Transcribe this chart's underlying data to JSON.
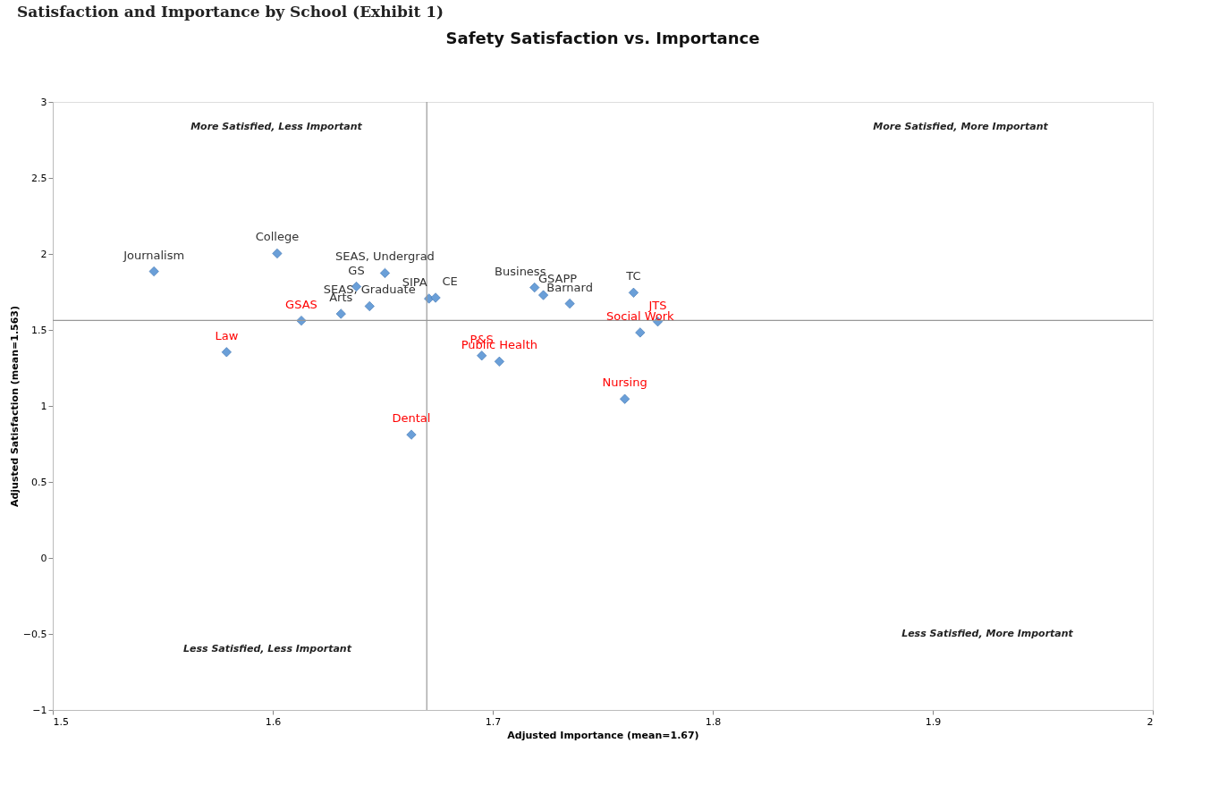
{
  "chart_data": {
    "type": "scatter",
    "title": "Safety Satisfaction vs. Importance",
    "xlabel": "Adjusted Importance (mean=1.67)",
    "ylabel": "Adjusted Satisfaction (mean=1.563)",
    "x": [
      1.546,
      1.602,
      1.651,
      1.638,
      1.644,
      1.631,
      1.613,
      1.579,
      1.671,
      1.674,
      1.719,
      1.723,
      1.735,
      1.764,
      1.775,
      1.767,
      1.695,
      1.703,
      1.76,
      1.663
    ],
    "values": [
      1.885,
      2.003,
      1.874,
      1.785,
      1.656,
      1.606,
      1.561,
      1.354,
      1.706,
      1.712,
      1.779,
      1.729,
      1.673,
      1.745,
      1.555,
      1.483,
      1.331,
      1.292,
      1.046,
      0.811
    ],
    "color": "#6a9fd8",
    "marker": "diamond",
    "grid": false,
    "xlim": [
      1.5,
      2
    ],
    "ylim": [
      -1,
      3
    ],
    "xticks": [
      1.5,
      1.6,
      1.7,
      1.8,
      1.9,
      2
    ],
    "yticks": [
      -1,
      -0.5,
      0,
      0.5,
      1,
      1.5,
      2,
      2.5,
      3
    ],
    "ref_lines": [
      {
        "axis": "x",
        "value": 1.67,
        "color": "#999999"
      },
      {
        "axis": "y",
        "value": 1.563,
        "color": "#999999"
      }
    ],
    "annotations": [
      "Satisfaction and Importance by School (Exhibit 1)",
      "More Satisfied, Less Important",
      "More Satisfied, More Important",
      "Less Satisfied, Less Important",
      "Less Satisfied, More Important",
      {
        "text": "Journalism",
        "x": 1.546,
        "y": 1.885
      },
      {
        "text": "College",
        "x": 1.602,
        "y": 2.003
      },
      {
        "text": "SEAS, Undergrad",
        "x": 1.651,
        "y": 1.874
      },
      {
        "text": "GS",
        "x": 1.638,
        "y": 1.785
      },
      {
        "text": "SEAS, Graduate",
        "x": 1.644,
        "y": 1.656
      },
      {
        "text": "Arts",
        "x": 1.631,
        "y": 1.606
      },
      {
        "text": "GSAS",
        "x": 1.613,
        "y": 1.561
      },
      {
        "text": "Law",
        "x": 1.579,
        "y": 1.354
      },
      {
        "text": "SIPA",
        "x": 1.671,
        "y": 1.706
      },
      {
        "text": "CE",
        "x": 1.674,
        "y": 1.712
      },
      {
        "text": "Business",
        "x": 1.719,
        "y": 1.779
      },
      {
        "text": "GSAPP",
        "x": 1.723,
        "y": 1.729
      },
      {
        "text": "Barnard",
        "x": 1.735,
        "y": 1.673
      },
      {
        "text": "TC",
        "x": 1.764,
        "y": 1.745
      },
      {
        "text": "JTS",
        "x": 1.775,
        "y": 1.555
      },
      {
        "text": "Social Work",
        "x": 1.767,
        "y": 1.483
      },
      {
        "text": "P&S",
        "x": 1.695,
        "y": 1.331
      },
      {
        "text": "Public Health",
        "x": 1.703,
        "y": 1.292
      },
      {
        "text": "Nursing",
        "x": 1.76,
        "y": 1.046
      },
      {
        "text": "Dental",
        "x": 1.663,
        "y": 0.811
      }
    ]
  }
}
